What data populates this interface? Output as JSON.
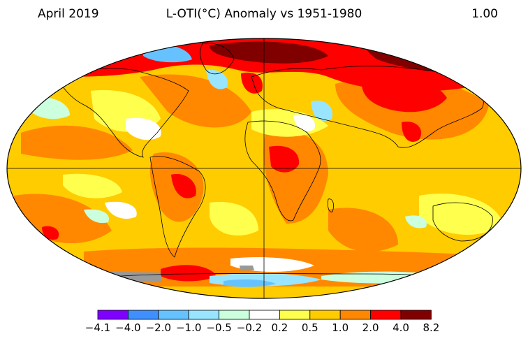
{
  "header": {
    "date": "April 2019",
    "title": "L-OTI(°C) Anomaly vs 1951-1980",
    "global_mean": "1.00"
  },
  "legend": {
    "colors": [
      "#7f00ff",
      "#3f8fff",
      "#66c2ff",
      "#99e5ff",
      "#ccffdd",
      "#ffffff",
      "#ffff4d",
      "#ffcc00",
      "#ff8800",
      "#ff0000",
      "#800000"
    ],
    "labels": [
      "−4.1",
      "−4.0",
      "−2.0",
      "−1.0",
      "−0.5",
      "−0.2",
      "0.2",
      "0.5",
      "1.0",
      "2.0",
      "4.0",
      "8.2"
    ]
  },
  "map": {
    "projection": "Robinson",
    "no_data_color": "#999999",
    "colors": {
      "base": "#ffcc00",
      "warm": "#ff8800",
      "hot": "#ff0000",
      "very_hot": "#800000",
      "mild": "#ffff4d",
      "neutral": "#ffffff",
      "cool_light": "#ccffdd",
      "cool": "#99e5ff",
      "cold": "#66c2ff"
    }
  }
}
